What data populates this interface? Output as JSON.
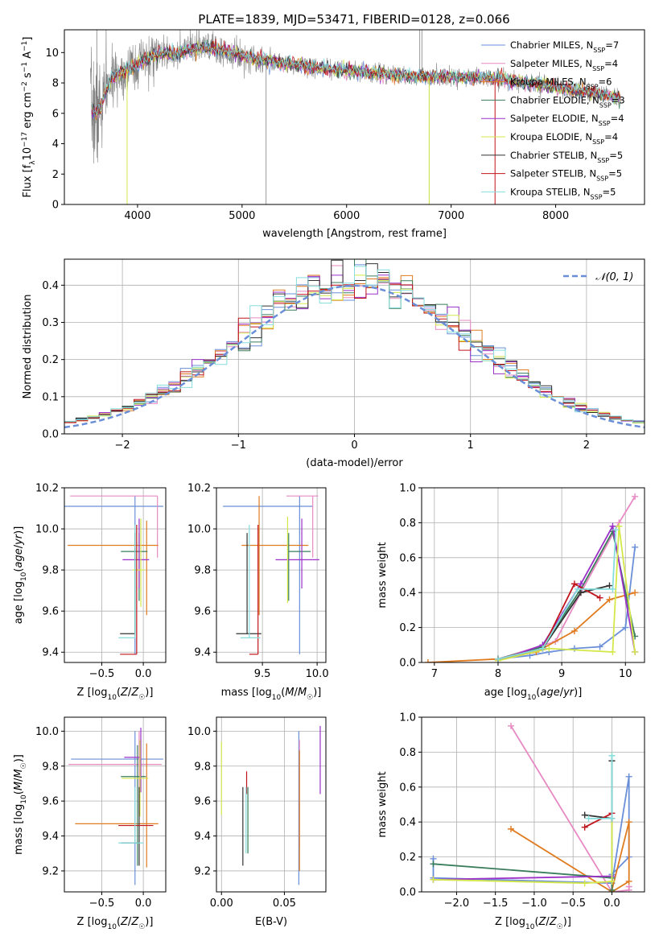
{
  "title": "PLATE=1839, MJD=53471, FIBERID=0128, z=0.066",
  "colors": {
    "Chabrier MILES": "#6a8fd8",
    "Salpeter MILES": "#e78ac3",
    "Kroupa MILES": "#e07b20",
    "Chabrier ELODIE": "#3a7d5c",
    "Salpeter ELODIE": "#9b30c8",
    "Kroupa ELODIE": "#d4e84a",
    "Chabrier STELIB": "#333333",
    "Salpeter STELIB": "#c0141c",
    "Kroupa STELIB": "#86dede",
    "data": "#808080",
    "normal_curve": "#6a8fd8"
  },
  "legend_spectrum": [
    {
      "name": "Chabrier MILES",
      "label": "Chabrier MILES, N",
      "nssp": "=7"
    },
    {
      "name": "Salpeter MILES",
      "label": "Salpeter MILES, N",
      "nssp": "=4"
    },
    {
      "name": "Kroupa MILES",
      "label": "Kroupa MILES, N",
      "nssp": "=6"
    },
    {
      "name": "Chabrier ELODIE",
      "label": "Chabrier ELODIE, N",
      "nssp": "=3"
    },
    {
      "name": "Salpeter ELODIE",
      "label": "Salpeter ELODIE, N",
      "nssp": "=4"
    },
    {
      "name": "Kroupa ELODIE",
      "label": "Kroupa ELODIE, N",
      "nssp": "=4"
    },
    {
      "name": "Chabrier STELIB",
      "label": "Chabrier STELIB, N",
      "nssp": "=5"
    },
    {
      "name": "Salpeter STELIB",
      "label": "Salpeter STELIB, N",
      "nssp": "=5"
    },
    {
      "name": "Kroupa STELIB",
      "label": "Kroupa STELIB, N",
      "nssp": "=5"
    }
  ],
  "legend_sub": "SSP",
  "legend_hist": "𝒩(0, 1)",
  "chart_data": [
    {
      "id": "spectrum",
      "type": "line",
      "xlabel": "wavelength [Angstrom, rest frame]",
      "ylabel": "Flux [f_λ 10^-17 erg cm^-2 s^-1 A^-1]",
      "xlim": [
        3300,
        8850
      ],
      "ylim": [
        0,
        11.5
      ],
      "xticks": [
        4000,
        5000,
        6000,
        7000,
        8000
      ],
      "yticks": [
        0,
        2,
        4,
        6,
        8,
        10
      ],
      "continuum": {
        "x": [
          3550,
          3600,
          3650,
          3700,
          3750,
          3800,
          3900,
          4000,
          4100,
          4200,
          4300,
          4400,
          4500,
          4600,
          4700,
          4800,
          4900,
          5000,
          5200,
          5400,
          5600,
          5800,
          6000,
          6200,
          6400,
          6600,
          6800,
          7000,
          7200,
          7400,
          7600,
          7800,
          8000,
          8200,
          8400,
          8600,
          8700
        ],
        "y": [
          6.4,
          6.0,
          6.3,
          7.6,
          8.2,
          8.5,
          8.9,
          9.2,
          9.6,
          9.9,
          9.9,
          10.0,
          10.2,
          10.3,
          10.3,
          10.1,
          10.0,
          9.8,
          9.5,
          9.3,
          9.1,
          8.9,
          8.8,
          8.7,
          8.55,
          8.45,
          8.4,
          8.4,
          8.35,
          8.3,
          8.15,
          7.95,
          7.7,
          7.5,
          7.3,
          7.0,
          6.7
        ]
      }
    },
    {
      "id": "residuals",
      "type": "histogram",
      "xlabel": "(data-model)/error",
      "ylabel": "Normed distribution",
      "xlim": [
        -2.5,
        2.5
      ],
      "ylim": [
        0,
        0.47
      ],
      "xticks": [
        -2,
        -1,
        0,
        1,
        2
      ],
      "yticks": [
        0.0,
        0.1,
        0.2,
        0.3,
        0.4
      ],
      "bin_width": 0.1,
      "distribution": "N(0,1)"
    },
    {
      "id": "age-vs-Z",
      "type": "scatter",
      "xlabel": "Z [log10(Z/Z☉)]",
      "ylabel": "age  [log10(age/yr)]",
      "xlim": [
        -0.95,
        0.27
      ],
      "ylim": [
        9.35,
        10.2
      ],
      "xticks": [
        -0.5,
        0.0
      ],
      "yticks": [
        9.4,
        9.6,
        9.8,
        10.0,
        10.2
      ],
      "points": [
        {
          "model": "Chabrier MILES",
          "x": -0.1,
          "xerr": [
            0.85,
            0.34
          ],
          "y": 10.11,
          "yerr": [
            0.72,
            0.05
          ]
        },
        {
          "model": "Salpeter MILES",
          "x": 0.17,
          "xerr": [
            1.05,
            0.0
          ],
          "y": 10.16,
          "yerr": [
            0.3,
            0.0
          ]
        },
        {
          "model": "Kroupa MILES",
          "x": 0.04,
          "xerr": [
            0.95,
            0.14
          ],
          "y": 9.92,
          "yerr": [
            0.34,
            0.12
          ]
        },
        {
          "model": "Chabrier ELODIE",
          "x": -0.05,
          "xerr": [
            0.22,
            0.1
          ],
          "y": 9.89,
          "yerr": [
            0.24,
            0.09
          ]
        },
        {
          "model": "Salpeter ELODIE",
          "x": -0.05,
          "xerr": [
            0.2,
            0.12
          ],
          "y": 9.85,
          "yerr": [
            0.14,
            0.2
          ]
        },
        {
          "model": "Kroupa ELODIE",
          "x": -0.03,
          "xerr": [
            0.1,
            0.05
          ],
          "y": 9.8,
          "yerr": [
            0.18,
            0.25
          ]
        },
        {
          "model": "Chabrier STELIB",
          "x": -0.1,
          "xerr": [
            0.18,
            0.0
          ],
          "y": 9.49,
          "yerr": [
            0.0,
            0.49
          ]
        },
        {
          "model": "Salpeter STELIB",
          "x": -0.08,
          "xerr": [
            0.2,
            0.0
          ],
          "y": 9.39,
          "yerr": [
            0.0,
            0.63
          ]
        },
        {
          "model": "Kroupa STELIB",
          "x": -0.1,
          "xerr": [
            0.2,
            0.0
          ],
          "y": 9.47,
          "yerr": [
            0.0,
            0.55
          ]
        }
      ]
    },
    {
      "id": "age-vs-mass",
      "type": "scatter",
      "xlabel": "mass [log10(M/M☉)]",
      "ylabel": "",
      "xlim": [
        9.08,
        10.08
      ],
      "ylim": [
        9.35,
        10.2
      ],
      "xticks": [
        9.5,
        10.0
      ],
      "yticks": [
        9.4,
        9.6,
        9.8,
        10.0,
        10.2
      ],
      "points": [
        {
          "model": "Chabrier MILES",
          "x": 9.84,
          "xerr": [
            0.7,
            0.12
          ],
          "y": 10.11,
          "yerr": [
            0.72,
            0.05
          ]
        },
        {
          "model": "Salpeter MILES",
          "x": 9.96,
          "xerr": [
            0.24,
            0.05
          ],
          "y": 10.16,
          "yerr": [
            0.3,
            0.0
          ]
        },
        {
          "model": "Kroupa MILES",
          "x": 9.47,
          "xerr": [
            0.16,
            0.45
          ],
          "y": 9.92,
          "yerr": [
            0.34,
            0.24
          ]
        },
        {
          "model": "Chabrier ELODIE",
          "x": 9.74,
          "xerr": [
            0.0,
            0.2
          ],
          "y": 9.89,
          "yerr": [
            0.24,
            0.09
          ]
        },
        {
          "model": "Salpeter ELODIE",
          "x": 9.86,
          "xerr": [
            0.24,
            0.16
          ],
          "y": 9.85,
          "yerr": [
            0.14,
            0.2
          ]
        },
        {
          "model": "Kroupa ELODIE",
          "x": 9.73,
          "xerr": [
            0.0,
            0.0
          ],
          "y": 9.8,
          "yerr": [
            0.16,
            0.26
          ]
        },
        {
          "model": "Chabrier STELIB",
          "x": 9.36,
          "xerr": [
            0.1,
            0.13
          ],
          "y": 9.49,
          "yerr": [
            0.0,
            0.49
          ]
        },
        {
          "model": "Salpeter STELIB",
          "x": 9.46,
          "xerr": [
            0.08,
            0.0
          ],
          "y": 9.39,
          "yerr": [
            0.0,
            0.63
          ]
        },
        {
          "model": "Kroupa STELIB",
          "x": 9.38,
          "xerr": [
            0.08,
            0.1
          ],
          "y": 9.47,
          "yerr": [
            0.0,
            0.55
          ]
        }
      ]
    },
    {
      "id": "massweight-vs-age",
      "type": "line",
      "xlabel": "age  [log10(age/yr)]",
      "ylabel": "mass weight",
      "xlim": [
        6.8,
        10.3
      ],
      "ylim": [
        0,
        1.0
      ],
      "xticks": [
        7,
        8,
        9,
        10
      ],
      "yticks": [
        0.0,
        0.2,
        0.4,
        0.6,
        0.8,
        1.0
      ],
      "series": [
        {
          "model": "Chabrier MILES",
          "x": [
            8.0,
            8.5,
            8.8,
            9.2,
            9.6,
            10.0,
            10.15
          ],
          "y": [
            0.02,
            0.04,
            0.06,
            0.08,
            0.09,
            0.2,
            0.66
          ]
        },
        {
          "model": "Salpeter MILES",
          "x": [
            8.0,
            8.9,
            9.3,
            9.9,
            10.15
          ],
          "y": [
            0.02,
            0.12,
            0.4,
            0.8,
            0.95
          ]
        },
        {
          "model": "Kroupa MILES",
          "x": [
            6.9,
            8.0,
            8.6,
            9.2,
            9.75,
            10.15
          ],
          "y": [
            0.0,
            0.02,
            0.06,
            0.18,
            0.36,
            0.4
          ]
        },
        {
          "model": "Chabrier ELODIE",
          "x": [
            8.0,
            8.7,
            9.3,
            9.8,
            10.15
          ],
          "y": [
            0.02,
            0.09,
            0.42,
            0.75,
            0.15
          ]
        },
        {
          "model": "Salpeter ELODIE",
          "x": [
            8.0,
            8.7,
            9.3,
            9.8,
            10.15
          ],
          "y": [
            0.01,
            0.1,
            0.45,
            0.78,
            0.06
          ]
        },
        {
          "model": "Kroupa ELODIE",
          "x": [
            8.0,
            8.8,
            9.8,
            9.9,
            10.15
          ],
          "y": [
            0.01,
            0.08,
            0.06,
            0.78,
            0.06
          ]
        },
        {
          "model": "Chabrier STELIB",
          "x": [
            8.0,
            8.7,
            9.3,
            9.75
          ],
          "y": [
            0.02,
            0.08,
            0.4,
            0.44
          ]
        },
        {
          "model": "Salpeter STELIB",
          "x": [
            8.0,
            8.7,
            9.2,
            9.6
          ],
          "y": [
            0.02,
            0.08,
            0.45,
            0.37
          ]
        },
        {
          "model": "Kroupa STELIB",
          "x": [
            8.0,
            8.7,
            9.25,
            9.8,
            9.85
          ],
          "y": [
            0.02,
            0.08,
            0.42,
            0.42,
            0.76
          ]
        }
      ]
    },
    {
      "id": "mass-vs-Z",
      "type": "scatter",
      "xlabel": "Z [log10(Z/Z☉)]",
      "ylabel": "mass [log10(M/M☉)]",
      "xlim": [
        -0.95,
        0.27
      ],
      "ylim": [
        9.08,
        10.08
      ],
      "xticks": [
        -0.5,
        0.0
      ],
      "yticks": [
        9.2,
        9.4,
        9.6,
        9.8,
        10.0
      ],
      "points": [
        {
          "model": "Chabrier MILES",
          "x": -0.1,
          "xerr": [
            0.77,
            0.34
          ],
          "y": 9.84,
          "yerr": [
            0.72,
            0.16
          ]
        },
        {
          "model": "Salpeter MILES",
          "x": -0.05,
          "xerr": [
            0.85,
            0.27
          ],
          "y": 9.81,
          "yerr": [
            0.29,
            0.19
          ]
        },
        {
          "model": "Kroupa MILES",
          "x": 0.04,
          "xerr": [
            0.86,
            0.14
          ],
          "y": 9.47,
          "yerr": [
            0.25,
            0.46
          ]
        },
        {
          "model": "Chabrier ELODIE",
          "x": -0.07,
          "xerr": [
            0.2,
            0.1
          ],
          "y": 9.74,
          "yerr": [
            0.51,
            0.18
          ]
        },
        {
          "model": "Salpeter ELODIE",
          "x": -0.03,
          "xerr": [
            0.2,
            0.0
          ],
          "y": 9.85,
          "yerr": [
            0.2,
            0.17
          ]
        },
        {
          "model": "Kroupa ELODIE",
          "x": -0.04,
          "xerr": [
            0.22,
            0.1
          ],
          "y": 9.73,
          "yerr": [
            0.22,
            0.22
          ]
        },
        {
          "model": "Chabrier STELIB",
          "x": -0.05,
          "xerr": [
            0.22,
            0.0
          ],
          "y": 9.36,
          "yerr": [
            0.13,
            0.32
          ]
        },
        {
          "model": "Salpeter STELIB",
          "x": -0.08,
          "xerr": [
            0.22,
            0.2
          ],
          "y": 9.46,
          "yerr": [
            0.0,
            0.0
          ]
        },
        {
          "model": "Kroupa STELIB",
          "x": -0.1,
          "xerr": [
            0.2,
            0.1
          ],
          "y": 9.36,
          "yerr": [
            0.0,
            0.32
          ]
        }
      ]
    },
    {
      "id": "mass-vs-ebv",
      "type": "scatter",
      "xlabel": "E(B-V)",
      "ylabel": "",
      "xlim": [
        -0.004,
        0.083
      ],
      "ylim": [
        9.08,
        10.08
      ],
      "xticks": [
        0.0,
        0.05
      ],
      "yticks": [
        9.2,
        9.4,
        9.6,
        9.8,
        10.0
      ],
      "points": [
        {
          "model": "Chabrier MILES",
          "x": 0.0615,
          "y": 9.56,
          "yerr": [
            0.44,
            0.44
          ]
        },
        {
          "model": "Salpeter MILES",
          "x": 0.062,
          "y": 9.6,
          "yerr": [
            0.26,
            0.35
          ]
        },
        {
          "model": "Kroupa MILES",
          "x": 0.062,
          "y": 9.53,
          "yerr": [
            0.33,
            0.36
          ]
        },
        {
          "model": "Chabrier ELODIE",
          "x": 0.021,
          "y": 9.49,
          "yerr": [
            0.19,
            0.19
          ]
        },
        {
          "model": "Salpeter ELODIE",
          "x": 0.0785,
          "y": 9.84,
          "yerr": [
            0.2,
            0.19
          ]
        },
        {
          "model": "Kroupa ELODIE",
          "x": 0.0,
          "y": 9.73,
          "yerr": [
            0.21,
            0.21
          ]
        },
        {
          "model": "Chabrier STELIB",
          "x": 0.017,
          "y": 9.46,
          "yerr": [
            0.23,
            0.22
          ]
        },
        {
          "model": "Salpeter STELIB",
          "x": 0.02,
          "y": 9.7,
          "yerr": [
            0.06,
            0.07
          ]
        },
        {
          "model": "Kroupa STELIB",
          "x": 0.0195,
          "y": 9.5,
          "yerr": [
            0.2,
            0.18
          ]
        }
      ]
    },
    {
      "id": "massweight-vs-Z",
      "type": "line",
      "xlabel": "Z [log10(Z/Z☉)]",
      "ylabel": "mass weight",
      "xlim": [
        -2.45,
        0.42
      ],
      "ylim": [
        0,
        1.0
      ],
      "xticks": [
        -2.0,
        -1.5,
        -1.0,
        -0.5,
        0.0
      ],
      "yticks": [
        0.0,
        0.2,
        0.4,
        0.6,
        0.8,
        1.0
      ],
      "series": [
        {
          "model": "Chabrier MILES",
          "x": [
            -2.3,
            -2.3,
            0.0,
            0.0,
            0.22,
            0.22,
            0.0
          ],
          "y": [
            0.19,
            0.08,
            0.05,
            0.1,
            0.2,
            0.66,
            0.05
          ]
        },
        {
          "model": "Salpeter MILES",
          "x": [
            -1.3,
            0.0,
            0.22,
            0.22
          ],
          "y": [
            0.95,
            0.0,
            0.01,
            0.03
          ]
        },
        {
          "model": "Kroupa MILES",
          "x": [
            -1.3,
            0.0,
            0.22,
            0.22,
            0.0
          ],
          "y": [
            0.36,
            0.0,
            0.06,
            0.4,
            0.01
          ]
        },
        {
          "model": "Chabrier ELODIE",
          "x": [
            -2.3,
            0.0,
            0.0,
            0.0
          ],
          "y": [
            0.16,
            0.08,
            0.75,
            0.01
          ]
        },
        {
          "model": "Salpeter ELODIE",
          "x": [
            -2.3,
            0.0
          ],
          "y": [
            0.07,
            0.09
          ]
        },
        {
          "model": "Kroupa ELODIE",
          "x": [
            -2.3,
            -0.35,
            0.0,
            0.0
          ],
          "y": [
            0.07,
            0.05,
            0.06,
            0.78
          ]
        },
        {
          "model": "Chabrier STELIB",
          "x": [
            -0.35,
            0.0,
            0.0
          ],
          "y": [
            0.44,
            0.42,
            0.75
          ]
        },
        {
          "model": "Salpeter STELIB",
          "x": [
            -0.35,
            0.0
          ],
          "y": [
            0.37,
            0.45
          ]
        },
        {
          "model": "Kroupa STELIB",
          "x": [
            -0.3,
            0.0,
            0.0
          ],
          "y": [
            0.42,
            0.42,
            0.78
          ]
        }
      ]
    }
  ]
}
